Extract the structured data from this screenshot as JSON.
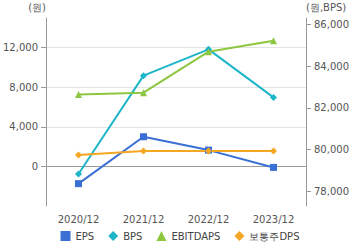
{
  "chart_data": {
    "type": "line",
    "y_label": "(원)",
    "y2_label": "(원,BPS)",
    "categories": [
      "2020/12",
      "2021/12",
      "2022/12",
      "2023/12"
    ],
    "ylim": [
      -4000,
      15000
    ],
    "yticks": [
      0,
      {
        "value": 4000,
        "label": "4,000"
      },
      {
        "value": 8000,
        "label": "8,000"
      },
      {
        "value": 12000,
        "label": "12,000"
      }
    ],
    "y2lim": [
      77300,
      86300
    ],
    "y2ticks": [
      {
        "value": 78000,
        "label": "78,000"
      },
      {
        "value": 80000,
        "label": "80,000"
      },
      {
        "value": 82000,
        "label": "82,000"
      },
      {
        "value": 84000,
        "label": "84,000"
      },
      {
        "value": 86000,
        "label": "86,000"
      }
    ],
    "grid": true,
    "legend": "bottom",
    "series": [
      {
        "name": "EPS",
        "color": "#3a6fd6",
        "marker": "square",
        "values": [
          -1740,
          3000,
          1650,
          -100
        ]
      },
      {
        "name": "BPS",
        "color": "#1fb5c9",
        "marker": "diamond",
        "axis": "y2",
        "values": [
          78830,
          83540,
          84800,
          82500
        ]
      },
      {
        "name": "EBITDAPS",
        "color": "#8dc63f",
        "marker": "triangle",
        "values": [
          7260,
          7450,
          11600,
          12700
        ]
      },
      {
        "name": "보통주DPS",
        "color": "#f5a623",
        "marker": "diamond",
        "values": [
          1160,
          1550,
          1550,
          1550
        ]
      }
    ]
  }
}
